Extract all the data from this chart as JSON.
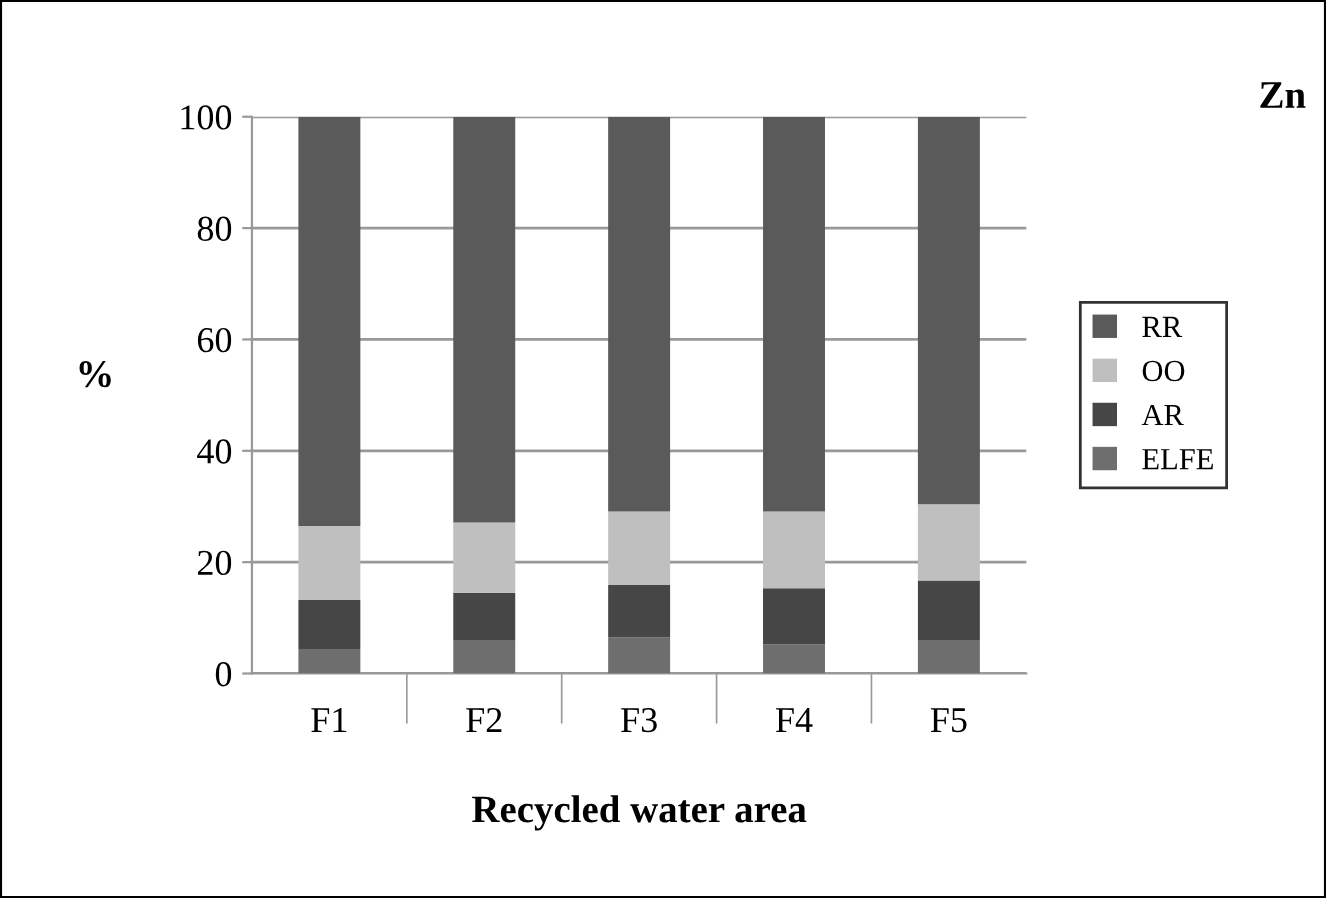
{
  "chart_data": {
    "type": "bar",
    "title": "Zn",
    "xlabel": "Recycled water area",
    "ylabel": "%",
    "categories": [
      "F1",
      "F2",
      "F3",
      "F4",
      "F5"
    ],
    "stacked": true,
    "series": [
      {
        "name": "ELFE",
        "color": "#6e6e6e",
        "values": [
          4.4,
          5.9,
          6.5,
          5.2,
          5.9
        ]
      },
      {
        "name": "AR",
        "color": "#464646",
        "values": [
          8.8,
          8.6,
          9.4,
          10.1,
          10.8
        ]
      },
      {
        "name": "OO",
        "color": "#bfbfbf",
        "values": [
          13.3,
          12.6,
          13.2,
          13.8,
          13.7
        ]
      },
      {
        "name": "RR",
        "color": "#5a5a5a",
        "values": [
          73.5,
          72.9,
          70.9,
          70.9,
          69.6
        ]
      }
    ],
    "ylim": [
      0,
      100
    ],
    "yticks": [
      0,
      20,
      40,
      60,
      80,
      100
    ],
    "grid": "y",
    "legend": "right"
  }
}
